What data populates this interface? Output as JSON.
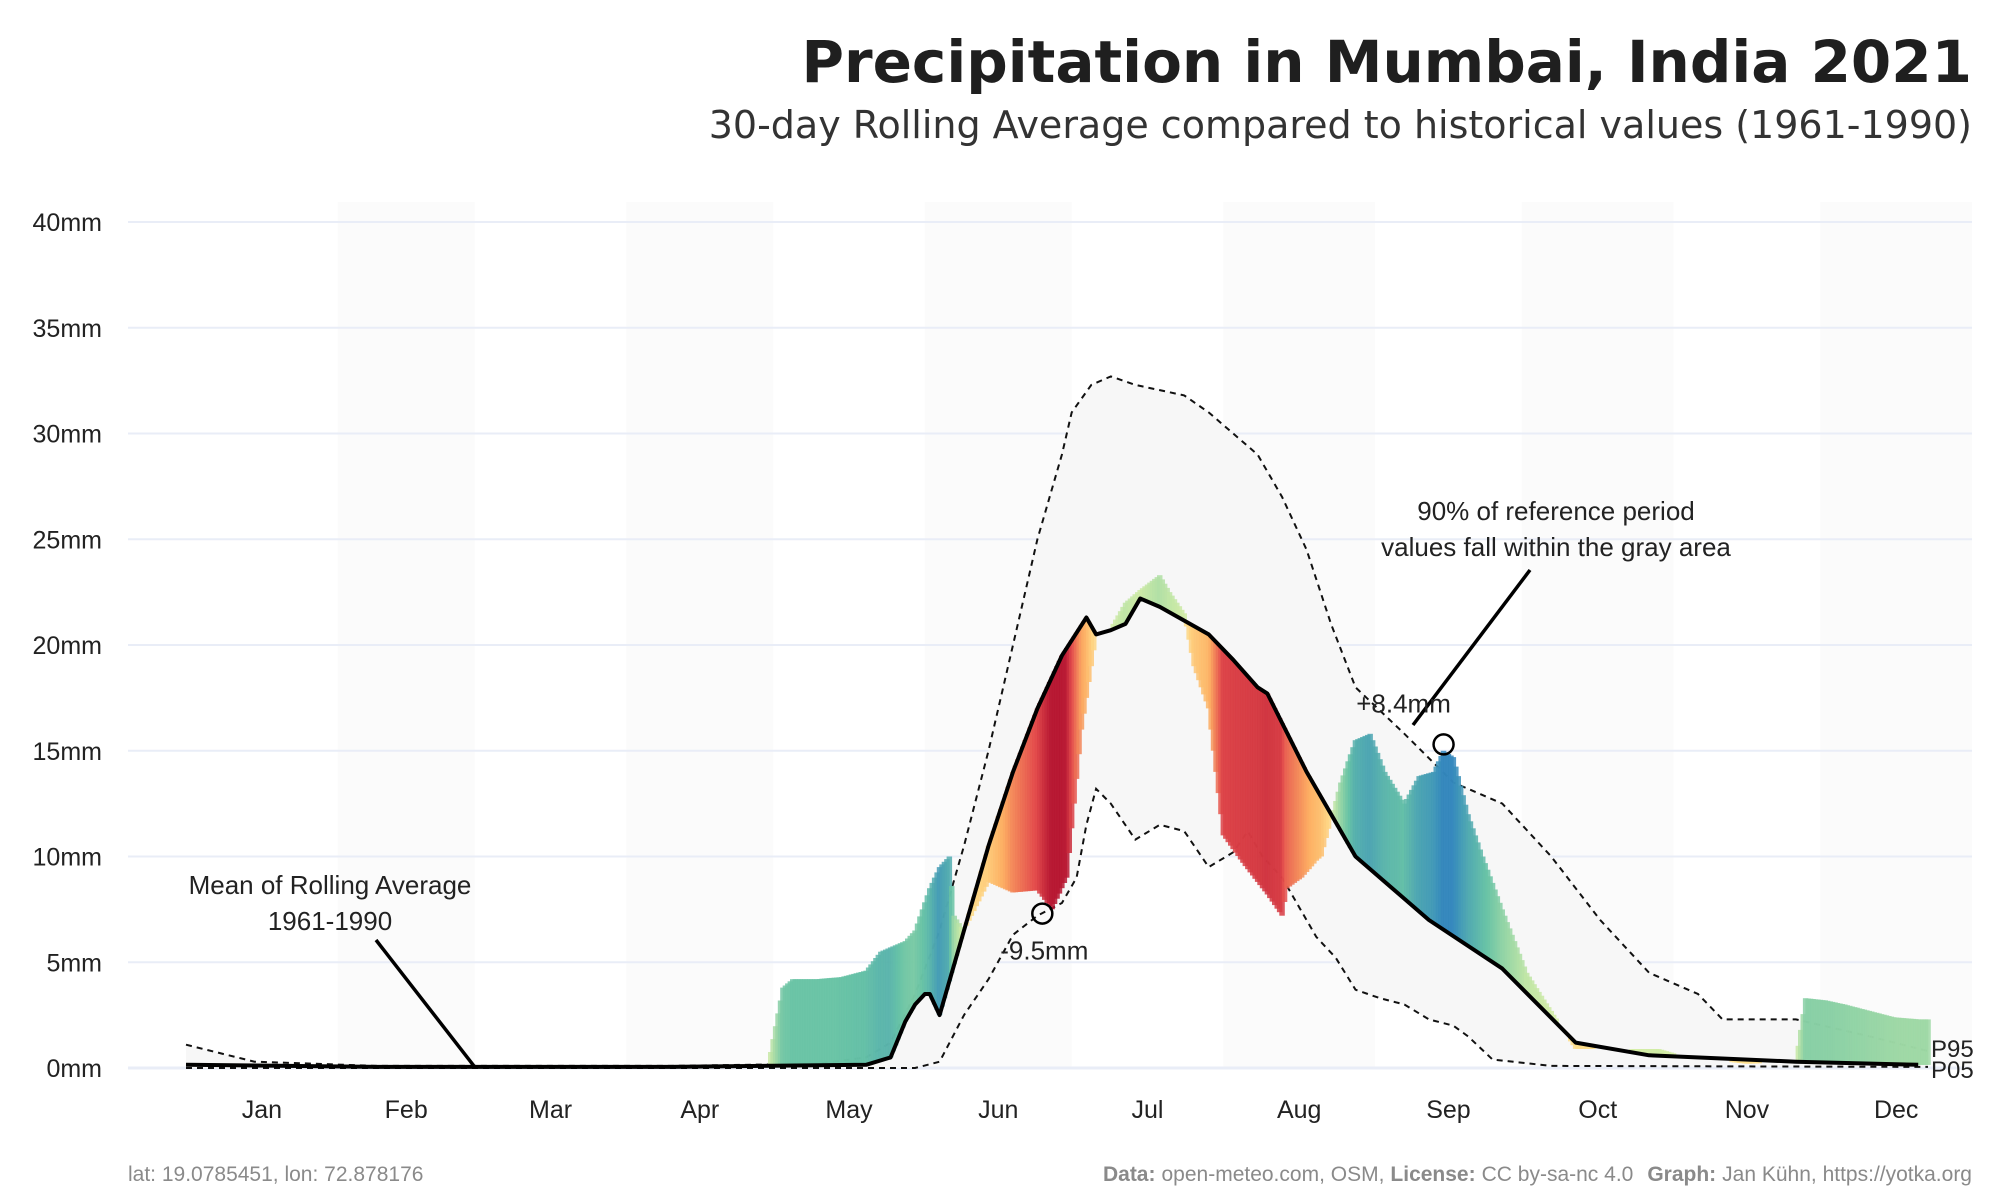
{
  "chart_data": {
    "type": "area",
    "title": "Precipitation in Mumbai, India 2021",
    "subtitle": "30-day Rolling Average compared to historical values (1961-1990)",
    "ylim": [
      0,
      40
    ],
    "y_ticks": [
      "0mm",
      "5mm",
      "10mm",
      "15mm",
      "20mm",
      "25mm",
      "30mm",
      "35mm",
      "40mm"
    ],
    "x_ticks": [
      "Jan",
      "Feb",
      "Mar",
      "Apr",
      "May",
      "Jun",
      "Jul",
      "Aug",
      "Sep",
      "Oct",
      "Nov",
      "Dec"
    ],
    "grid": true,
    "series": [
      {
        "name": "Mean of Rolling Average 1961-1990",
        "points": [
          [
            1,
            0.15
          ],
          [
            40,
            0.05
          ],
          [
            100,
            0.05
          ],
          [
            140,
            0.15
          ],
          [
            145,
            0.5
          ],
          [
            148,
            2.2
          ],
          [
            150,
            3.0
          ],
          [
            152,
            3.5
          ],
          [
            153,
            3.5
          ],
          [
            155,
            2.5
          ],
          [
            160,
            6.5
          ],
          [
            165,
            10.5
          ],
          [
            170,
            14.0
          ],
          [
            175,
            17.0
          ],
          [
            180,
            19.5
          ],
          [
            185,
            21.3
          ],
          [
            187,
            20.5
          ],
          [
            190,
            20.7
          ],
          [
            193,
            21.0
          ],
          [
            196,
            22.2
          ],
          [
            200,
            21.8
          ],
          [
            210,
            20.5
          ],
          [
            215,
            19.3
          ],
          [
            220,
            18.0
          ],
          [
            222,
            17.7
          ],
          [
            230,
            14.0
          ],
          [
            240,
            10.0
          ],
          [
            255,
            7.0
          ],
          [
            270,
            4.7
          ],
          [
            285,
            1.2
          ],
          [
            300,
            0.6
          ],
          [
            330,
            0.3
          ],
          [
            355,
            0.15
          ]
        ]
      },
      {
        "name": "P95",
        "points": [
          [
            1,
            1.1
          ],
          [
            15,
            0.3
          ],
          [
            40,
            0.1
          ],
          [
            100,
            0.1
          ],
          [
            130,
            0.2
          ],
          [
            140,
            0.5
          ],
          [
            145,
            1.2
          ],
          [
            150,
            3.5
          ],
          [
            155,
            6.5
          ],
          [
            160,
            10.5
          ],
          [
            165,
            15.0
          ],
          [
            170,
            20.0
          ],
          [
            175,
            25.0
          ],
          [
            180,
            29.0
          ],
          [
            182,
            31.0
          ],
          [
            186,
            32.3
          ],
          [
            190,
            32.7
          ],
          [
            195,
            32.3
          ],
          [
            205,
            31.8
          ],
          [
            210,
            31.0
          ],
          [
            220,
            29.0
          ],
          [
            225,
            27.0
          ],
          [
            230,
            24.5
          ],
          [
            235,
            21.0
          ],
          [
            240,
            18.0
          ],
          [
            250,
            15.8
          ],
          [
            260,
            13.5
          ],
          [
            270,
            12.5
          ],
          [
            280,
            10.0
          ],
          [
            290,
            7.0
          ],
          [
            300,
            4.5
          ],
          [
            310,
            3.5
          ],
          [
            315,
            2.3
          ],
          [
            330,
            2.3
          ],
          [
            345,
            1.5
          ],
          [
            357,
            0.8
          ]
        ]
      },
      {
        "name": "P05",
        "points": [
          [
            1,
            0.0
          ],
          [
            140,
            0.0
          ],
          [
            150,
            0.0
          ],
          [
            155,
            0.3
          ],
          [
            160,
            2.5
          ],
          [
            165,
            4.2
          ],
          [
            170,
            6.3
          ],
          [
            175,
            7.2
          ],
          [
            180,
            7.8
          ],
          [
            183,
            9.0
          ],
          [
            185,
            11.5
          ],
          [
            187,
            13.2
          ],
          [
            190,
            12.5
          ],
          [
            195,
            10.8
          ],
          [
            200,
            11.5
          ],
          [
            205,
            11.2
          ],
          [
            210,
            9.5
          ],
          [
            215,
            10.2
          ],
          [
            218,
            11.2
          ],
          [
            221,
            10.0
          ],
          [
            225,
            9.0
          ],
          [
            232,
            6.2
          ],
          [
            236,
            5.2
          ],
          [
            240,
            3.7
          ],
          [
            245,
            3.3
          ],
          [
            250,
            3.0
          ],
          [
            255,
            2.3
          ],
          [
            260,
            2.0
          ],
          [
            263,
            1.5
          ],
          [
            268,
            0.4
          ],
          [
            280,
            0.1
          ],
          [
            357,
            0.05
          ]
        ]
      },
      {
        "name": "2021",
        "points": [
          [
            120,
            0.15
          ],
          [
            123,
            3.8
          ],
          [
            125,
            4.2
          ],
          [
            130,
            4.2
          ],
          [
            135,
            4.3
          ],
          [
            140,
            4.6
          ],
          [
            143,
            5.5
          ],
          [
            146,
            5.8
          ],
          [
            148,
            6.0
          ],
          [
            150,
            6.5
          ],
          [
            153,
            8.5
          ],
          [
            155,
            9.5
          ],
          [
            157,
            10.0
          ],
          [
            158,
            7.2
          ],
          [
            160,
            6.5
          ],
          [
            165,
            8.8
          ],
          [
            170,
            8.3
          ],
          [
            175,
            8.4
          ],
          [
            178,
            7.5
          ],
          [
            181,
            9.0
          ],
          [
            184,
            16.0
          ],
          [
            187,
            20.5
          ],
          [
            190,
            20.8
          ],
          [
            193,
            22.0
          ],
          [
            196,
            22.6
          ],
          [
            200,
            23.3
          ],
          [
            202,
            22.5
          ],
          [
            205,
            21.5
          ],
          [
            207,
            19.0
          ],
          [
            210,
            17.0
          ],
          [
            213,
            11.0
          ],
          [
            217,
            9.7
          ],
          [
            222,
            8.2
          ],
          [
            225,
            7.2
          ],
          [
            226,
            8.5
          ],
          [
            229,
            9.0
          ],
          [
            232,
            9.8
          ],
          [
            233,
            10.0
          ],
          [
            237,
            13.5
          ],
          [
            240,
            15.5
          ],
          [
            243,
            15.8
          ],
          [
            246,
            14.0
          ],
          [
            250,
            12.5
          ],
          [
            253,
            13.8
          ],
          [
            256,
            14.0
          ],
          [
            258,
            15.0
          ],
          [
            260,
            14.7
          ],
          [
            263,
            12.0
          ],
          [
            266,
            10.0
          ],
          [
            270,
            7.5
          ],
          [
            275,
            4.5
          ],
          [
            285,
            0.9
          ],
          [
            298,
            0.9
          ],
          [
            300,
            0.9
          ],
          [
            302,
            0.9
          ],
          [
            308,
            0.5
          ],
          [
            320,
            0.2
          ],
          [
            330,
            0.3
          ],
          [
            332,
            3.3
          ],
          [
            336,
            3.2
          ],
          [
            340,
            3.0
          ],
          [
            350,
            2.4
          ],
          [
            355,
            2.3
          ],
          [
            357,
            2.3
          ]
        ]
      }
    ],
    "annotations": [
      {
        "text_lines": [
          "Mean of Rolling Average",
          "1961-1990"
        ]
      },
      {
        "text_lines": [
          "90% of reference period",
          "values fall within the gray area"
        ]
      },
      {
        "text": "-9.5mm",
        "day": 176,
        "value": 7.3
      },
      {
        "text": "+8.4mm",
        "day": 258,
        "value": 15.3
      }
    ],
    "end_labels": [
      "P95",
      "P05"
    ],
    "colors": {
      "historical_band": "#f7f7f7",
      "band_edge": "#111111",
      "mean_line": "#000000",
      "above_mean": "#2b83ba",
      "below_mean": "#d7191c",
      "grid": "#e9edf7",
      "month_shade": "#fbfbfb"
    }
  },
  "footer": {
    "coordinates": "lat: 19.0785451, lon: 72.878176",
    "data_label": "Data:",
    "data_value": "open-meteo.com, OSM,",
    "license_label": "License:",
    "license_value": "CC by-sa-nc 4.0",
    "graph_label": "Graph:",
    "graph_value": "Jan Kühn, https://yotka.org"
  }
}
